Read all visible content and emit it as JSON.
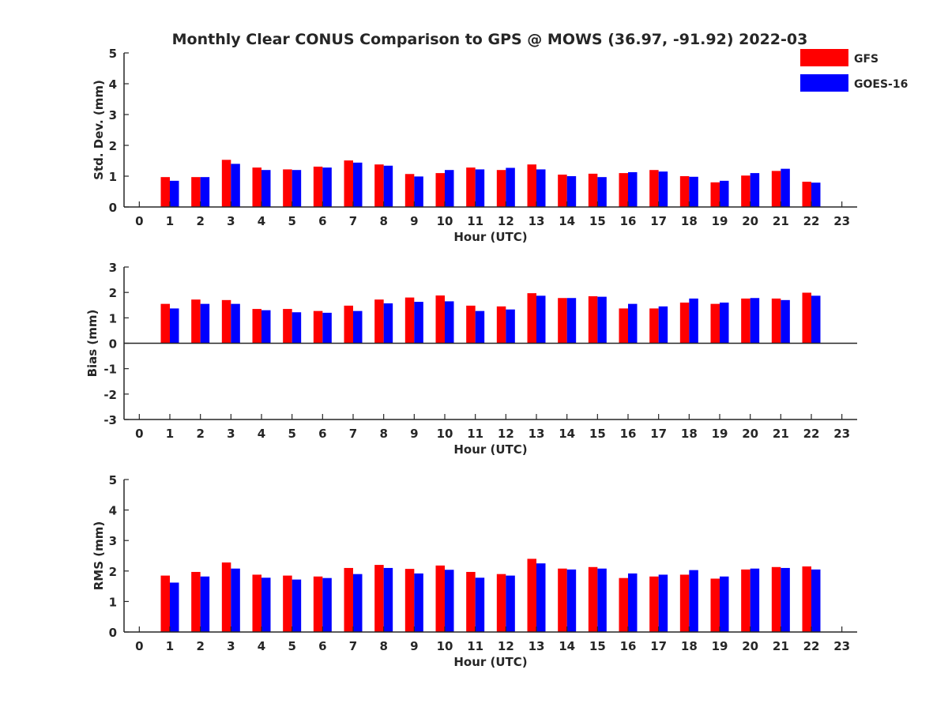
{
  "figure": {
    "title": "Monthly Clear CONUS Comparison to GPS @ MOWS (36.97, -91.92) 2022-03",
    "legend": {
      "placement": "top-right",
      "entries": [
        {
          "label": "GFS",
          "color": "#ff0000"
        },
        {
          "label": "GOES-16",
          "color": "#0000ff"
        }
      ]
    }
  },
  "chart_data": [
    {
      "type": "bar",
      "xlabel": "Hour (UTC)",
      "ylabel": "Std. Dev. (mm)",
      "xlim": [
        -0.5,
        23.5
      ],
      "ylim": [
        0,
        5
      ],
      "yticks": [
        0,
        1,
        2,
        3,
        4,
        5
      ],
      "categories": [
        "0",
        "1",
        "2",
        "3",
        "4",
        "5",
        "6",
        "7",
        "8",
        "9",
        "10",
        "11",
        "12",
        "13",
        "14",
        "15",
        "16",
        "17",
        "18",
        "19",
        "20",
        "21",
        "22",
        "23"
      ],
      "series": [
        {
          "name": "GFS",
          "color": "#ff0000",
          "values": [
            null,
            0.97,
            0.97,
            1.53,
            1.28,
            1.22,
            1.31,
            1.51,
            1.38,
            1.07,
            1.1,
            1.28,
            1.2,
            1.38,
            1.05,
            1.08,
            1.1,
            1.2,
            1.0,
            0.8,
            1.02,
            1.17,
            0.82,
            null
          ]
        },
        {
          "name": "GOES-16",
          "color": "#0000ff",
          "values": [
            null,
            0.85,
            0.97,
            1.4,
            1.2,
            1.2,
            1.28,
            1.44,
            1.34,
            0.99,
            1.2,
            1.22,
            1.27,
            1.22,
            1.0,
            0.97,
            1.13,
            1.15,
            0.98,
            0.85,
            1.1,
            1.24,
            0.79,
            null
          ]
        }
      ]
    },
    {
      "type": "bar",
      "xlabel": "Hour (UTC)",
      "ylabel": "Bias (mm)",
      "xlim": [
        -0.5,
        23.5
      ],
      "ylim": [
        -3,
        3
      ],
      "yticks": [
        -3,
        -2,
        -1,
        0,
        1,
        2,
        3
      ],
      "categories": [
        "0",
        "1",
        "2",
        "3",
        "4",
        "5",
        "6",
        "7",
        "8",
        "9",
        "10",
        "11",
        "12",
        "13",
        "14",
        "15",
        "16",
        "17",
        "18",
        "19",
        "20",
        "21",
        "22",
        "23"
      ],
      "series": [
        {
          "name": "GFS",
          "color": "#ff0000",
          "values": [
            null,
            1.55,
            1.72,
            1.7,
            1.35,
            1.35,
            1.27,
            1.48,
            1.72,
            1.8,
            1.88,
            1.48,
            1.45,
            1.97,
            1.78,
            1.85,
            1.37,
            1.37,
            1.6,
            1.55,
            1.76,
            1.76,
            1.99,
            null
          ]
        },
        {
          "name": "GOES-16",
          "color": "#0000ff",
          "values": [
            null,
            1.37,
            1.55,
            1.55,
            1.3,
            1.22,
            1.2,
            1.27,
            1.57,
            1.63,
            1.65,
            1.27,
            1.33,
            1.87,
            1.78,
            1.83,
            1.55,
            1.45,
            1.76,
            1.6,
            1.78,
            1.7,
            1.87,
            null
          ]
        }
      ]
    },
    {
      "type": "bar",
      "xlabel": "Hour (UTC)",
      "ylabel": "RMS (mm)",
      "xlim": [
        -0.5,
        23.5
      ],
      "ylim": [
        0,
        5
      ],
      "yticks": [
        0,
        1,
        2,
        3,
        4,
        5
      ],
      "categories": [
        "0",
        "1",
        "2",
        "3",
        "4",
        "5",
        "6",
        "7",
        "8",
        "9",
        "10",
        "11",
        "12",
        "13",
        "14",
        "15",
        "16",
        "17",
        "18",
        "19",
        "20",
        "21",
        "22",
        "23"
      ],
      "series": [
        {
          "name": "GFS",
          "color": "#ff0000",
          "values": [
            null,
            1.85,
            1.97,
            2.28,
            1.88,
            1.85,
            1.82,
            2.1,
            2.2,
            2.07,
            2.18,
            1.97,
            1.9,
            2.4,
            2.08,
            2.13,
            1.77,
            1.82,
            1.88,
            1.75,
            2.05,
            2.13,
            2.15,
            null
          ]
        },
        {
          "name": "GOES-16",
          "color": "#0000ff",
          "values": [
            null,
            1.62,
            1.82,
            2.08,
            1.78,
            1.72,
            1.77,
            1.9,
            2.1,
            1.92,
            2.04,
            1.78,
            1.85,
            2.25,
            2.05,
            2.08,
            1.92,
            1.88,
            2.03,
            1.82,
            2.08,
            2.1,
            2.05,
            null
          ]
        }
      ]
    }
  ]
}
